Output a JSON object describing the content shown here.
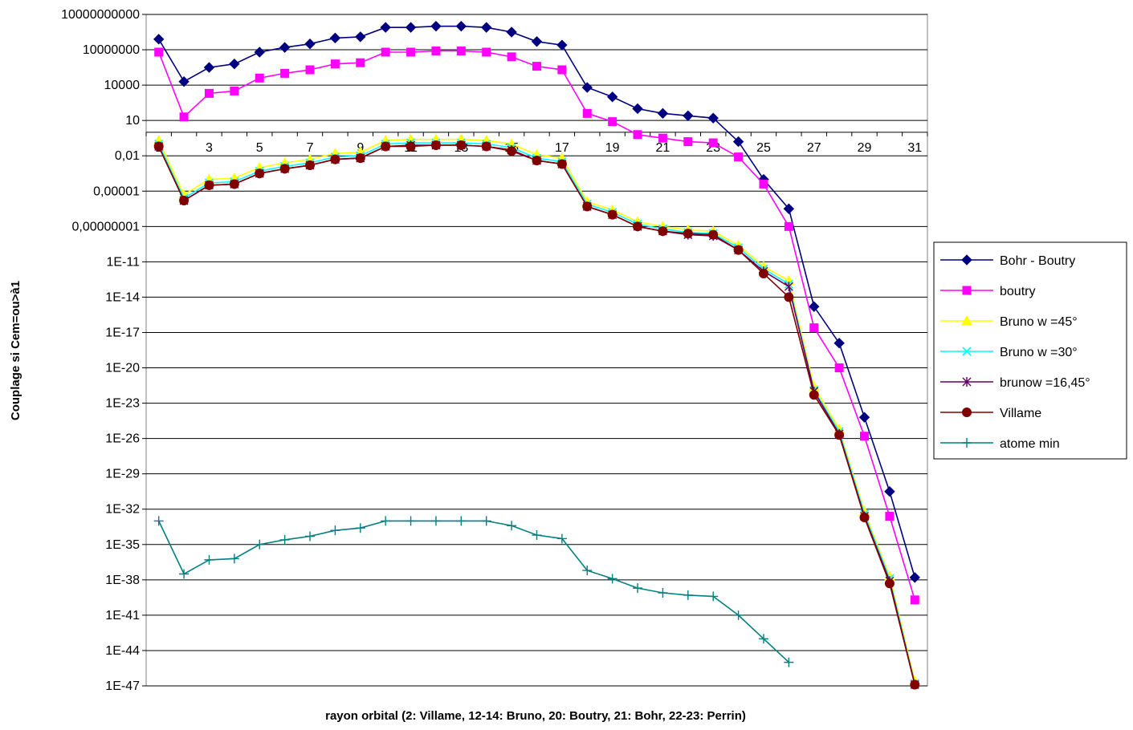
{
  "chart_data": {
    "type": "line",
    "title": "",
    "xlabel": "rayon orbital (2: Villame, 12-14: Bruno, 20: Boutry, 21: Bohr, 22-23: Perrin)",
    "ylabel": "Couplage si Cem=ou>à1",
    "y_scale": "log10",
    "ylim_exp": [
      -47,
      10
    ],
    "y_tick_labels": [
      "10000000000",
      "10000000",
      "10000",
      "10",
      "0,01",
      "0,00001",
      "0,00000001",
      "1E-11",
      "1E-14",
      "1E-17",
      "1E-20",
      "1E-23",
      "1E-26",
      "1E-29",
      "1E-32",
      "1E-35",
      "1E-38",
      "1E-41",
      "1E-44",
      "1E-47"
    ],
    "x_categories": [
      1,
      2,
      3,
      4,
      5,
      6,
      7,
      8,
      9,
      10,
      11,
      12,
      13,
      14,
      15,
      16,
      17,
      18,
      19,
      20,
      21,
      22,
      23,
      24,
      25,
      26,
      27,
      28,
      29,
      30,
      31
    ],
    "x_tick_labels": [
      "1",
      "3",
      "5",
      "7",
      "9",
      "11",
      "13",
      "15",
      "17",
      "19",
      "21",
      "23",
      "25",
      "27",
      "29",
      "31"
    ],
    "x_axis_crosses_at": 1,
    "grid": true,
    "legend_position": "right",
    "series": [
      {
        "name": "Bohr - Boutry",
        "color": "#000080",
        "marker": "diamond",
        "log10_values": [
          7.9,
          4.3,
          5.5,
          5.8,
          6.8,
          7.2,
          7.5,
          8.0,
          8.1,
          8.9,
          8.9,
          9.0,
          9.0,
          8.9,
          8.5,
          7.7,
          7.4,
          3.8,
          3.0,
          2.0,
          1.6,
          1.4,
          1.2,
          -0.8,
          -4.0,
          -6.5,
          -14.8,
          -17.9,
          -24.2,
          -30.5,
          -37.8
        ]
      },
      {
        "name": "boutry",
        "color": "#FF00FF",
        "marker": "square",
        "log10_values": [
          6.8,
          1.3,
          3.3,
          3.5,
          4.6,
          5.0,
          5.3,
          5.8,
          5.9,
          6.8,
          6.8,
          6.9,
          6.9,
          6.8,
          6.4,
          5.6,
          5.3,
          1.6,
          0.9,
          -0.2,
          -0.5,
          -0.8,
          -0.9,
          -2.1,
          -4.4,
          -8.0,
          -16.6,
          -20.0,
          -25.8,
          -32.6,
          -39.7
        ]
      },
      {
        "name": "Bruno w =45°",
        "color": "#FFFF00",
        "marker": "triangle",
        "log10_values": [
          -0.7,
          -5.3,
          -4.0,
          -3.9,
          -3.0,
          -2.6,
          -2.3,
          -1.8,
          -1.7,
          -0.7,
          -0.6,
          -0.6,
          -0.6,
          -0.7,
          -1.0,
          -1.9,
          -2.2,
          -5.9,
          -6.6,
          -7.6,
          -8.0,
          -8.3,
          -8.4,
          -9.6,
          -11.4,
          -12.6,
          -21.6,
          -25.2,
          -32.2,
          -37.7,
          -46.6
        ]
      },
      {
        "name": "Bruno w =30°",
        "color": "#00FFFF",
        "marker": "x",
        "log10_values": [
          -1.0,
          -5.6,
          -4.3,
          -4.2,
          -3.3,
          -2.9,
          -2.6,
          -2.1,
          -2.0,
          -1.0,
          -0.9,
          -0.9,
          -0.9,
          -1.0,
          -1.3,
          -2.2,
          -2.5,
          -6.1,
          -6.8,
          -7.8,
          -8.2,
          -8.5,
          -8.6,
          -9.8,
          -11.6,
          -12.9,
          -21.9,
          -25.4,
          -32.4,
          -37.9,
          -46.8
        ]
      },
      {
        "name": "brunow =16,45°",
        "color": "#660066",
        "marker": "asterisk",
        "log10_values": [
          -1.2,
          -5.8,
          -4.5,
          -4.4,
          -3.5,
          -3.1,
          -2.8,
          -2.3,
          -2.2,
          -1.2,
          -1.1,
          -1.1,
          -1.1,
          -1.2,
          -1.5,
          -2.4,
          -2.7,
          -6.3,
          -7.0,
          -8.0,
          -8.4,
          -8.7,
          -8.8,
          -10.0,
          -11.8,
          -13.1,
          -22.0,
          -25.6,
          -32.6,
          -38.1,
          -46.9
        ]
      },
      {
        "name": "Villame",
        "color": "#800000",
        "marker": "circle",
        "log10_values": [
          -1.2,
          -5.8,
          -4.5,
          -4.4,
          -3.5,
          -3.1,
          -2.8,
          -2.3,
          -2.2,
          -1.2,
          -1.2,
          -1.1,
          -1.1,
          -1.2,
          -1.6,
          -2.4,
          -2.7,
          -6.3,
          -7.0,
          -8.0,
          -8.4,
          -8.6,
          -8.7,
          -10.0,
          -12.0,
          -14.0,
          -22.3,
          -25.7,
          -32.7,
          -38.3,
          -46.9
        ]
      },
      {
        "name": "atome min",
        "color": "#008080",
        "marker": "plus",
        "log10_values": [
          -33.0,
          -37.5,
          -36.3,
          -36.2,
          -35.0,
          -34.6,
          -34.3,
          -33.8,
          -33.6,
          -33.0,
          -33.0,
          -33.0,
          -33.0,
          -33.0,
          -33.4,
          -34.2,
          -34.5,
          -37.2,
          -37.9,
          -38.7,
          -39.1,
          -39.3,
          -39.4,
          -41.0,
          -43.0,
          -45.0
        ]
      }
    ]
  }
}
